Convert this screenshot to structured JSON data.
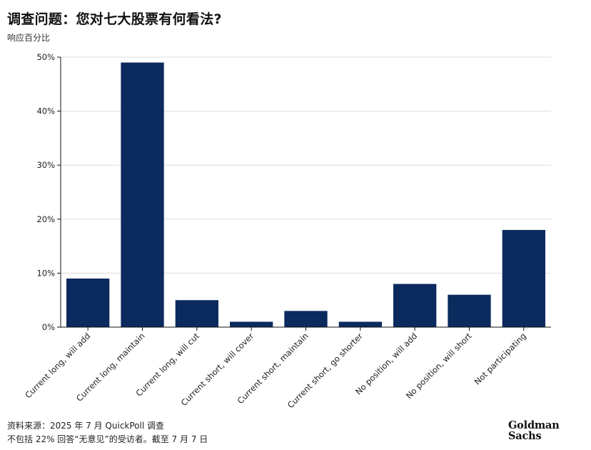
{
  "header": {
    "title": "调查问题：您对七大股票有何看法?",
    "subtitle": "响应百分比"
  },
  "footer": {
    "source": "资料来源：2025 年 7 月 QuickPoll 调查",
    "note": "不包括 22% 回答“无意见”的受访者。截至 7 月 7 日"
  },
  "logo": {
    "line1": "Goldman",
    "line2": "Sachs"
  },
  "colors": {
    "bar": "#0b2a5e",
    "grid": "#dcdcdc",
    "axis": "#111111"
  },
  "chart_data": {
    "type": "bar",
    "title": "调查问题：您对七大股票有何看法?",
    "ylabel": "响应百分比",
    "xlabel": "",
    "categories": [
      "Current long, will add",
      "Current long, maintain",
      "Current long, will cut",
      "Current short, will cover",
      "Current short, maintain",
      "Current short, go shorter",
      "No position, will add",
      "No position, will short",
      "Not participating"
    ],
    "values": [
      9,
      49,
      5,
      1,
      3,
      1,
      8,
      6,
      18
    ],
    "ylim": [
      0,
      50
    ],
    "yticks": [
      0,
      10,
      20,
      30,
      40,
      50
    ],
    "ytick_labels": [
      "0%",
      "10%",
      "20%",
      "30%",
      "40%",
      "50%"
    ],
    "grid": true,
    "legend": "none"
  }
}
